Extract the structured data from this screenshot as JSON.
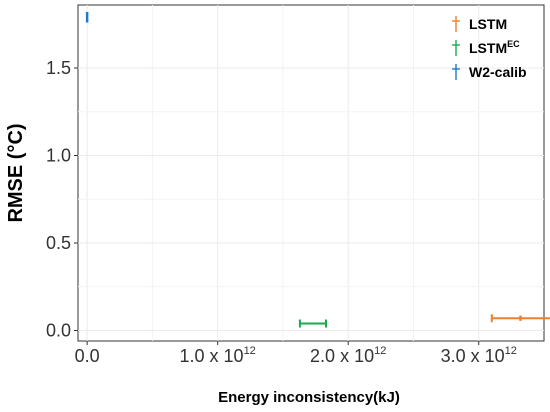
{
  "chart_data": {
    "type": "scatter",
    "xlabel": "Energy inconsistency(kJ)",
    "ylabel": "RMSE (°C)",
    "xlim": [
      -70000000000.0,
      3500000000000.0
    ],
    "ylim": [
      -0.06,
      1.86
    ],
    "x_ticks": [
      {
        "value": 0,
        "label": "0.0",
        "exp": ""
      },
      {
        "value": 1000000000000.0,
        "label": "1.0 x 10",
        "exp": "12"
      },
      {
        "value": 2000000000000.0,
        "label": "2.0 x 10",
        "exp": "12"
      },
      {
        "value": 3000000000000.0,
        "label": "3.0 x 10",
        "exp": "12"
      }
    ],
    "y_ticks": [
      {
        "value": 0.0,
        "label": "0.0"
      },
      {
        "value": 0.5,
        "label": "0.5"
      },
      {
        "value": 1.0,
        "label": "1.0"
      },
      {
        "value": 1.5,
        "label": "1.5"
      }
    ],
    "grid": true,
    "legend_position": "top-right",
    "series": [
      {
        "name": "LSTM",
        "sup": "",
        "color": "#F07F2E",
        "x": 3320000000000.0,
        "y": 0.07,
        "x_err": [
          3100000000000.0,
          3600000000000.0
        ],
        "y_err": [
          0.055,
          0.085
        ]
      },
      {
        "name": "LSTM",
        "sup": "EC",
        "color": "#1BAA4F",
        "x": 1730000000000.0,
        "y": 0.04,
        "x_err": [
          1630000000000.0,
          1830000000000.0
        ],
        "y_err": [
          0.035,
          0.045
        ]
      },
      {
        "name": "W2-calib",
        "sup": "",
        "color": "#1E7BC8",
        "x": 0.0,
        "y": 1.79,
        "x_err": [
          0.0,
          0.0
        ],
        "y_err": [
          1.76,
          1.82
        ]
      }
    ]
  }
}
